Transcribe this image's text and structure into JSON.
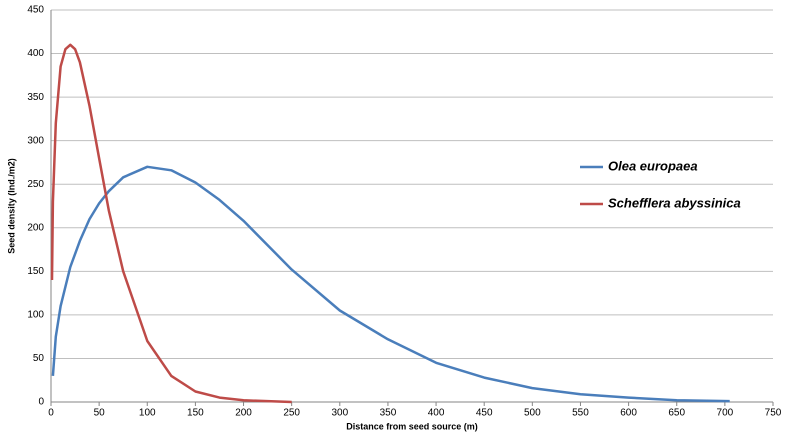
{
  "chart_data": {
    "type": "line",
    "x_label": "Distance from seed source (m)",
    "y_label": "Seed density (Ind./m2)",
    "xlim": [
      0,
      750
    ],
    "xticks": [
      0,
      50,
      100,
      150,
      200,
      250,
      300,
      350,
      400,
      450,
      500,
      550,
      600,
      650,
      700,
      750
    ],
    "ylim": [
      0,
      450
    ],
    "yticks": [
      0,
      50,
      100,
      150,
      200,
      250,
      300,
      350,
      400,
      450
    ],
    "grid": true,
    "legend": "right",
    "series": [
      {
        "name": "Olea europaea",
        "color": "#4a7ebb",
        "x": [
          2,
          5,
          10,
          20,
          30,
          40,
          50,
          60,
          75,
          100,
          125,
          150,
          175,
          200,
          250,
          300,
          350,
          400,
          450,
          500,
          550,
          600,
          650,
          705
        ],
        "values": [
          30,
          75,
          110,
          155,
          185,
          210,
          228,
          242,
          258,
          270,
          266,
          252,
          232,
          208,
          152,
          105,
          72,
          45,
          28,
          16,
          9,
          5,
          2,
          1
        ]
      },
      {
        "name": "Schefflera abyssinica",
        "color": "#be4b48",
        "x": [
          1,
          2,
          5,
          10,
          15,
          20,
          25,
          30,
          40,
          50,
          60,
          75,
          100,
          125,
          150,
          175,
          200,
          250
        ],
        "values": [
          140,
          230,
          320,
          385,
          405,
          410,
          405,
          390,
          340,
          280,
          220,
          150,
          70,
          30,
          12,
          5,
          2,
          0
        ]
      }
    ]
  }
}
